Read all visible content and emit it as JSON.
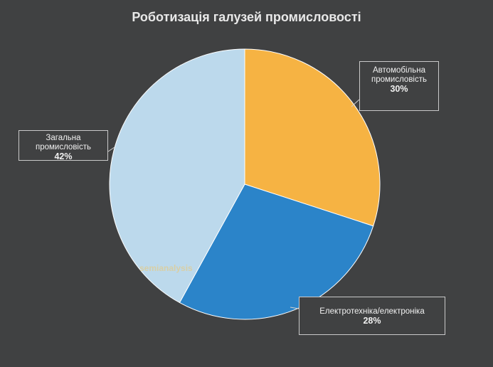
{
  "chart_data": {
    "type": "pie",
    "title": "Роботизація галузей промисловості",
    "categories": [
      "Автомобільна промисловість",
      "Електротехніка/електроніка",
      "Загальна промисловість"
    ],
    "values": [
      30,
      28,
      42
    ],
    "value_labels": [
      "30%",
      "28%",
      "42%"
    ],
    "colors": [
      "#f6b343",
      "#2b84c9",
      "#bcd9ec"
    ],
    "watermark": "semianalysis"
  }
}
